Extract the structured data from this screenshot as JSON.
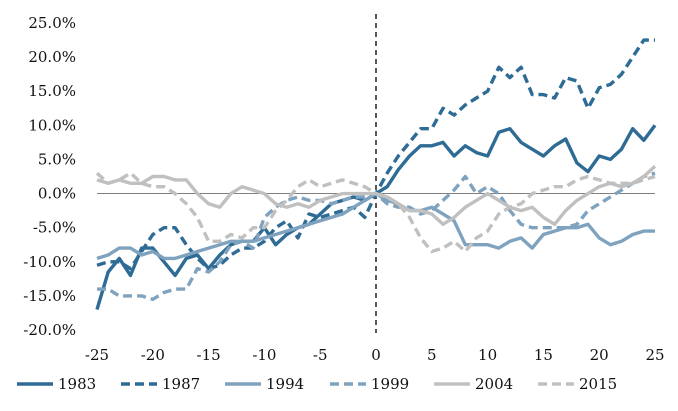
{
  "chart_data": {
    "type": "line",
    "title": "",
    "xlabel": "",
    "ylabel": "",
    "xlim": [
      -25,
      25
    ],
    "ylim": [
      -20,
      25
    ],
    "x_ticks": [
      -25,
      -20,
      -15,
      -10,
      -5,
      0,
      5,
      10,
      15,
      20,
      25
    ],
    "x_tick_labels": [
      "-25",
      "-20",
      "-15",
      "-10",
      "-5",
      "0",
      "5",
      "10",
      "15",
      "20",
      "25"
    ],
    "y_ticks": [
      25,
      20,
      15,
      10,
      5,
      0,
      -5,
      -10,
      -15,
      -20
    ],
    "y_tick_labels": [
      "25.0%",
      "20.0%",
      "15.0%",
      "10.0%",
      "5.0%",
      "0.0%",
      "-5.0%",
      "-10.0%",
      "-15.0%",
      "-20.0%"
    ],
    "grid": false,
    "reference_line": {
      "x": 0,
      "style": "dashed"
    },
    "legend_position": "bottom",
    "series": [
      {
        "name": "1983",
        "color": "#2e6b95",
        "dash": "solid",
        "x": [
          -25,
          -24,
          -23,
          -22,
          -21,
          -20,
          -19,
          -18,
          -17,
          -16,
          -15,
          -14,
          -13,
          -12,
          -11,
          -10,
          -9,
          -8,
          -7,
          -6,
          -5,
          -4,
          -3,
          -2,
          -1,
          0,
          1,
          2,
          3,
          4,
          5,
          6,
          7,
          8,
          9,
          10,
          11,
          12,
          13,
          14,
          15,
          16,
          17,
          18,
          19,
          20,
          21,
          22,
          23,
          24,
          25
        ],
        "values": [
          -17,
          -11.5,
          -9.5,
          -12,
          -8,
          -8,
          -10,
          -12,
          -9.5,
          -9,
          -11,
          -9,
          -7.5,
          -7,
          -7,
          -5,
          -7.5,
          -6,
          -5,
          -4.5,
          -3,
          -1.5,
          -1,
          -0.5,
          -1,
          0,
          1,
          3.5,
          5.5,
          7,
          7,
          7.5,
          5.5,
          7,
          6,
          5.5,
          9,
          9.5,
          7.5,
          6.5,
          5.5,
          7,
          8,
          4.5,
          3.2,
          5.5,
          5,
          6.5,
          9.5,
          7.8,
          10
        ]
      },
      {
        "name": "1987",
        "color": "#2e6b95",
        "dash": "dashed",
        "x": [
          -25,
          -24,
          -23,
          -22,
          -21,
          -20,
          -19,
          -18,
          -17,
          -16,
          -15,
          -14,
          -13,
          -12,
          -11,
          -10,
          -9,
          -8,
          -7,
          -6,
          -5,
          -4,
          -3,
          -2,
          -1,
          0,
          1,
          2,
          3,
          4,
          5,
          6,
          7,
          8,
          9,
          10,
          11,
          12,
          13,
          14,
          15,
          16,
          17,
          18,
          19,
          20,
          21,
          22,
          23,
          24,
          25
        ],
        "values": [
          -10.5,
          -10,
          -10,
          -11,
          -8.5,
          -6,
          -5,
          -5,
          -7.5,
          -9.5,
          -11,
          -10.5,
          -9,
          -8,
          -8,
          -7,
          -5,
          -4,
          -6.5,
          -3,
          -3.5,
          -3,
          -2.5,
          -2,
          -3.5,
          0,
          3,
          5.5,
          7.5,
          9.5,
          9.5,
          12.5,
          11.5,
          13,
          14,
          15,
          18.5,
          17,
          18.5,
          14.5,
          14.5,
          14,
          17,
          16.5,
          12.5,
          15.5,
          16,
          17.5,
          20,
          22.5,
          22.5
        ]
      },
      {
        "name": "1994",
        "color": "#7fa3bf",
        "dash": "solid",
        "x": [
          -25,
          -24,
          -23,
          -22,
          -21,
          -20,
          -19,
          -18,
          -17,
          -16,
          -15,
          -14,
          -13,
          -12,
          -11,
          -10,
          -9,
          -8,
          -7,
          -6,
          -5,
          -4,
          -3,
          -2,
          -1,
          0,
          1,
          2,
          3,
          4,
          5,
          6,
          7,
          8,
          9,
          10,
          11,
          12,
          13,
          14,
          15,
          16,
          17,
          18,
          19,
          20,
          21,
          22,
          23,
          24,
          25
        ],
        "values": [
          -9.5,
          -9,
          -8,
          -8,
          -9,
          -8.5,
          -9.5,
          -9.5,
          -9,
          -8.5,
          -8,
          -7.5,
          -7,
          -7,
          -7,
          -6.5,
          -6,
          -5.5,
          -5,
          -4.5,
          -4,
          -3.5,
          -3,
          -2,
          -1,
          0,
          -1,
          -1.5,
          -2.5,
          -2.5,
          -2,
          -3,
          -4,
          -7.5,
          -7.5,
          -7.5,
          -8,
          -7,
          -6.5,
          -8,
          -6,
          -5.5,
          -5,
          -5,
          -4.5,
          -6.5,
          -7.5,
          -7,
          -6,
          -5.5,
          -5.5
        ]
      },
      {
        "name": "1999",
        "color": "#7fa3bf",
        "dash": "dashed",
        "x": [
          -25,
          -24,
          -23,
          -22,
          -21,
          -20,
          -19,
          -18,
          -17,
          -16,
          -15,
          -14,
          -13,
          -12,
          -11,
          -10,
          -9,
          -8,
          -7,
          -6,
          -5,
          -4,
          -3,
          -2,
          -1,
          0,
          1,
          2,
          3,
          4,
          5,
          6,
          7,
          8,
          9,
          10,
          11,
          12,
          13,
          14,
          15,
          16,
          17,
          18,
          19,
          20,
          21,
          22,
          23,
          24,
          25
        ],
        "values": [
          -14,
          -14,
          -15,
          -15,
          -15,
          -15.5,
          -14.5,
          -14,
          -14,
          -11,
          -11.5,
          -10,
          -7.5,
          -7,
          -8,
          -3.5,
          -2,
          -1,
          -0.5,
          -1,
          -1,
          -1.5,
          -1,
          -0.5,
          -0.5,
          0,
          -1.5,
          -2,
          -2,
          -3,
          -2.5,
          -1,
          0.5,
          2.5,
          0,
          1,
          0,
          -2.5,
          -4.5,
          -5,
          -5,
          -5,
          -5,
          -4.5,
          -2.5,
          -1.5,
          -0.5,
          0.5,
          1.5,
          2.5,
          3
        ]
      },
      {
        "name": "2004",
        "color": "#c0c0c0",
        "dash": "solid",
        "x": [
          -25,
          -24,
          -23,
          -22,
          -21,
          -20,
          -19,
          -18,
          -17,
          -16,
          -15,
          -14,
          -13,
          -12,
          -11,
          -10,
          -9,
          -8,
          -7,
          -6,
          -5,
          -4,
          -3,
          -2,
          -1,
          0,
          1,
          2,
          3,
          4,
          5,
          6,
          7,
          8,
          9,
          10,
          11,
          12,
          13,
          14,
          15,
          16,
          17,
          18,
          19,
          20,
          21,
          22,
          23,
          24,
          25
        ],
        "values": [
          2,
          1.5,
          2,
          1.5,
          1.5,
          2.5,
          2.5,
          2,
          2,
          0,
          -1.5,
          -2,
          0,
          1,
          0.5,
          0,
          -1.5,
          -2,
          -1.5,
          -2,
          -1,
          -0.5,
          0,
          0,
          0,
          0,
          -0.5,
          -1.5,
          -2.5,
          -2.5,
          -3,
          -4.5,
          -3.5,
          -2,
          -1,
          0,
          -1,
          -2,
          -2.5,
          -2,
          -3.5,
          -4.5,
          -2.5,
          -1,
          0,
          1,
          1.5,
          1,
          1.5,
          2.5,
          4
        ]
      },
      {
        "name": "2015",
        "color": "#c0c0c0",
        "dash": "dashed",
        "x": [
          -25,
          -24,
          -23,
          -22,
          -21,
          -20,
          -19,
          -18,
          -17,
          -16,
          -15,
          -14,
          -13,
          -12,
          -11,
          -10,
          -9,
          -8,
          -7,
          -6,
          -5,
          -4,
          -3,
          -2,
          -1,
          0,
          1,
          2,
          3,
          4,
          5,
          6,
          7,
          8,
          9,
          10,
          11,
          12,
          13,
          14,
          15,
          16,
          17,
          18,
          19,
          20,
          21,
          22,
          23,
          24,
          25
        ],
        "values": [
          3,
          1.5,
          2,
          3,
          1.5,
          1,
          1,
          0,
          -1.5,
          -3.5,
          -7,
          -7,
          -6,
          -6.5,
          -5,
          -5,
          -2.5,
          -1,
          1,
          2,
          1,
          1.5,
          2,
          1.5,
          1,
          0,
          -0.5,
          -1.5,
          -3.5,
          -6.5,
          -8.5,
          -8,
          -7,
          -8.5,
          -6.5,
          -5.5,
          -3,
          -2,
          -1.5,
          0,
          0.5,
          1,
          1,
          2,
          2.5,
          2,
          1.5,
          1.5,
          1.5,
          2,
          2.5
        ]
      }
    ]
  }
}
